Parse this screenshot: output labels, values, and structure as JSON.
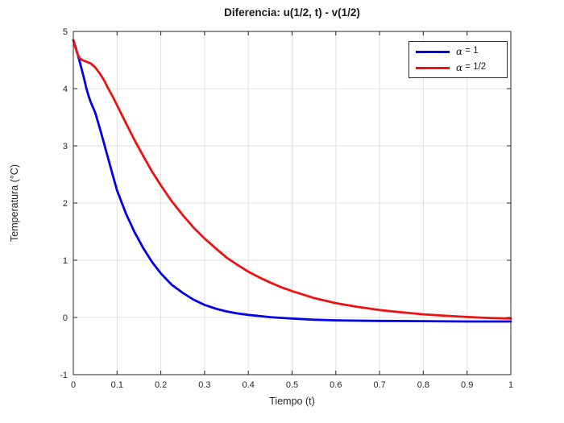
{
  "chart_data": {
    "type": "line",
    "title": "Diferencia: u(1/2, t) - v(1/2)",
    "xlabel": "Tiempo (t)",
    "ylabel": "Temperatura (°C)",
    "xlim": [
      0,
      1
    ],
    "ylim": [
      -1,
      5
    ],
    "x_ticks": [
      0,
      0.1,
      0.2,
      0.3,
      0.4,
      0.5,
      0.6,
      0.7,
      0.8,
      0.9,
      1
    ],
    "x_tick_labels": [
      "0",
      "0.1",
      "0.2",
      "0.3",
      "0.4",
      "0.5",
      "0.6",
      "0.7",
      "0.8",
      "0.9",
      "1"
    ],
    "y_ticks": [
      -1,
      0,
      1,
      2,
      3,
      4,
      5
    ],
    "y_tick_labels": [
      "-1",
      "0",
      "1",
      "2",
      "3",
      "4",
      "5"
    ],
    "grid": true,
    "grid_color": "#e0e0e0",
    "axis_color": "#262626",
    "background_color": "#ffffff",
    "legend_position": "top-right",
    "series": [
      {
        "name": "α = 1",
        "color": "#0000ee",
        "line_width": 2.8,
        "points": [
          [
            0,
            4.85
          ],
          [
            0.005,
            4.73
          ],
          [
            0.01,
            4.6
          ],
          [
            0.015,
            4.46
          ],
          [
            0.02,
            4.31
          ],
          [
            0.025,
            4.16
          ],
          [
            0.03,
            4.0
          ],
          [
            0.035,
            3.87
          ],
          [
            0.04,
            3.76
          ],
          [
            0.05,
            3.58
          ],
          [
            0.06,
            3.32
          ],
          [
            0.07,
            3.05
          ],
          [
            0.08,
            2.77
          ],
          [
            0.09,
            2.49
          ],
          [
            0.1,
            2.22
          ],
          [
            0.12,
            1.82
          ],
          [
            0.14,
            1.49
          ],
          [
            0.16,
            1.21
          ],
          [
            0.18,
            0.97
          ],
          [
            0.2,
            0.77
          ],
          [
            0.225,
            0.57
          ],
          [
            0.25,
            0.43
          ],
          [
            0.275,
            0.31
          ],
          [
            0.3,
            0.22
          ],
          [
            0.325,
            0.155
          ],
          [
            0.35,
            0.105
          ],
          [
            0.375,
            0.07
          ],
          [
            0.4,
            0.045
          ],
          [
            0.45,
            0.005
          ],
          [
            0.5,
            -0.02
          ],
          [
            0.55,
            -0.04
          ],
          [
            0.6,
            -0.05
          ],
          [
            0.7,
            -0.06
          ],
          [
            0.8,
            -0.065
          ],
          [
            0.9,
            -0.07
          ],
          [
            1.0,
            -0.07
          ]
        ]
      },
      {
        "name": "α = 1/2",
        "color": "#ee1111",
        "line_width": 2.8,
        "points": [
          [
            0,
            4.85
          ],
          [
            0.005,
            4.71
          ],
          [
            0.01,
            4.6
          ],
          [
            0.015,
            4.53
          ],
          [
            0.02,
            4.5
          ],
          [
            0.03,
            4.47
          ],
          [
            0.04,
            4.44
          ],
          [
            0.05,
            4.37
          ],
          [
            0.06,
            4.27
          ],
          [
            0.07,
            4.15
          ],
          [
            0.08,
            4.0
          ],
          [
            0.09,
            3.86
          ],
          [
            0.1,
            3.71
          ],
          [
            0.12,
            3.4
          ],
          [
            0.14,
            3.1
          ],
          [
            0.16,
            2.82
          ],
          [
            0.18,
            2.55
          ],
          [
            0.2,
            2.31
          ],
          [
            0.225,
            2.03
          ],
          [
            0.25,
            1.79
          ],
          [
            0.275,
            1.57
          ],
          [
            0.3,
            1.38
          ],
          [
            0.325,
            1.21
          ],
          [
            0.35,
            1.05
          ],
          [
            0.375,
            0.92
          ],
          [
            0.4,
            0.8
          ],
          [
            0.425,
            0.7
          ],
          [
            0.45,
            0.61
          ],
          [
            0.475,
            0.53
          ],
          [
            0.5,
            0.46
          ],
          [
            0.55,
            0.34
          ],
          [
            0.6,
            0.25
          ],
          [
            0.65,
            0.185
          ],
          [
            0.7,
            0.13
          ],
          [
            0.75,
            0.09
          ],
          [
            0.8,
            0.055
          ],
          [
            0.85,
            0.03
          ],
          [
            0.9,
            0.008
          ],
          [
            0.95,
            -0.008
          ],
          [
            1.0,
            -0.02
          ]
        ]
      }
    ]
  },
  "legend": {
    "items": [
      {
        "symbol": "α",
        "text": " = 1",
        "color": "#0000ee"
      },
      {
        "symbol": "α",
        "text": " = 1/2",
        "color": "#ee1111"
      }
    ]
  }
}
